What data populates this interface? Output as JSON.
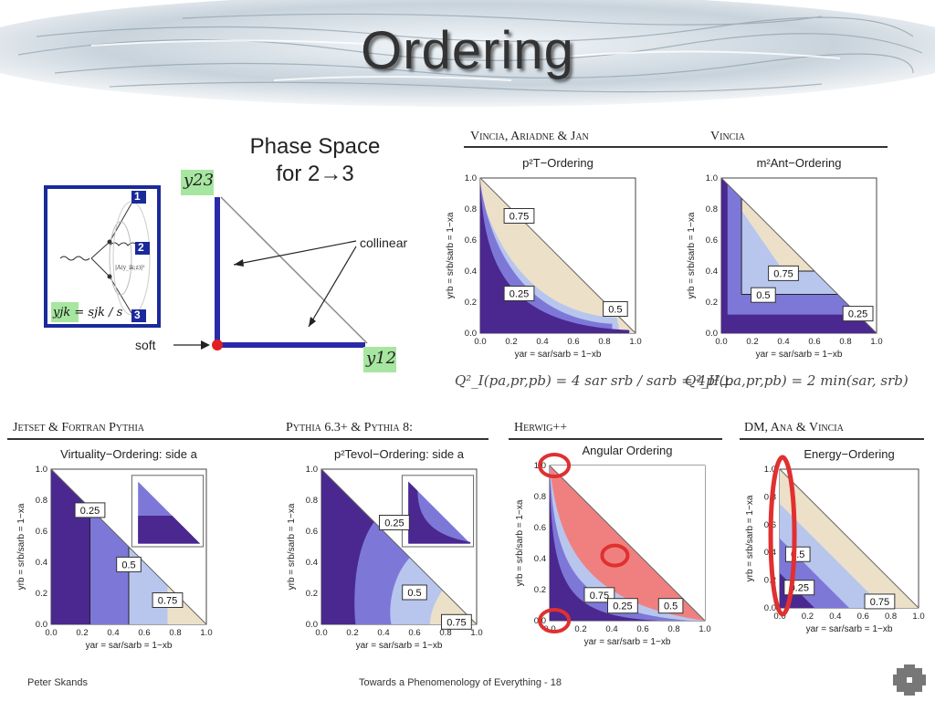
{
  "slide": {
    "title": "Ordering",
    "footer_left": "Peter Skands",
    "footer_center": "Towards a Phenomenology of Everything - 18"
  },
  "phase_space": {
    "title_line1": "Phase Space",
    "title_line2": "for 2→3",
    "y23": "y23",
    "y12": "y12",
    "collinear": "collinear",
    "soft": "soft",
    "inset_formula": "yjk = sjk / s",
    "inset_numbers": [
      "1",
      "2",
      "3"
    ]
  },
  "headers": {
    "vincia_ariadne_jan": "Vincia, Ariadne & Jan",
    "vincia": "Vincia",
    "jetset": "Jetset & Fortran Pythia",
    "pythia": "Pythia 6.3+ & Pythia 8:",
    "herwig": "Herwig++",
    "dm_ana": "DM, Ana & Vincia"
  },
  "formulas": {
    "f1": "Q²_I(pa,pr,pb) = 4 sar srb / sarb = 4p²⊥",
    "f2": "Q²_II(pa,pr,pb) = 2 min(sar, srb)"
  },
  "chart_data": [
    {
      "id": "pt",
      "type": "heatmap",
      "title": "p²T−Ordering",
      "xlabel": "yar = sar/sarb = 1−xb",
      "ylabel": "yrb = srb/sarb = 1−xa",
      "xlim": [
        0,
        1
      ],
      "ylim": [
        0,
        1
      ],
      "ticks": [
        "0.0",
        "0.2",
        "0.4",
        "0.6",
        "0.8",
        "1.0"
      ],
      "contours": [
        "0.75",
        "0.25",
        "0.5"
      ]
    },
    {
      "id": "mant",
      "type": "heatmap",
      "title": "m²Ant−Ordering",
      "xlabel": "yar = sar/sarb = 1−xb",
      "ylabel": "yrb = srb/sarb = 1−xa",
      "xlim": [
        0,
        1
      ],
      "ylim": [
        0,
        1
      ],
      "ticks": [
        "0.0",
        "0.2",
        "0.4",
        "0.6",
        "0.8",
        "1.0"
      ],
      "contours": [
        "0.75",
        "0.5",
        "0.25"
      ]
    },
    {
      "id": "virt",
      "type": "heatmap",
      "title": "Virtuality−Ordering: side a",
      "xlabel": "yar = sar/sarb = 1−xb",
      "ylabel": "yrb = srb/sarb = 1−xa",
      "xlim": [
        0,
        1
      ],
      "ylim": [
        0,
        1
      ],
      "ticks": [
        "0.0",
        "0.2",
        "0.4",
        "0.6",
        "0.8",
        "1.0"
      ],
      "contours": [
        "0.25",
        "0.5",
        "0.75"
      ]
    },
    {
      "id": "pevol",
      "type": "heatmap",
      "title": "p²Tevol−Ordering: side a",
      "xlabel": "yar = sar/sarb = 1−xb",
      "ylabel": "yrb = srb/sarb = 1−xa",
      "xlim": [
        0,
        1
      ],
      "ylim": [
        0,
        1
      ],
      "ticks": [
        "0.0",
        "0.2",
        "0.4",
        "0.6",
        "0.8",
        "1.0"
      ],
      "contours": [
        "0.25",
        "0.5",
        "0.75"
      ]
    },
    {
      "id": "ang",
      "type": "heatmap",
      "title": "Angular Ordering",
      "xlabel": "yar = sar/sarb = 1−xb",
      "ylabel": "yrb = srb/sarb = 1−xa",
      "xlim": [
        0,
        1
      ],
      "ylim": [
        0,
        1
      ],
      "ticks": [
        "0.0",
        "0.2",
        "0.4",
        "0.6",
        "0.8",
        "1.0"
      ],
      "contours": [
        "0.75",
        "0.25",
        "0.5"
      ]
    },
    {
      "id": "energy",
      "type": "heatmap",
      "title": "Energy−Ordering",
      "xlabel": "yar = sar/sarb = 1−xb",
      "ylabel": "yrb = srb/sarb = 1−xa",
      "xlim": [
        0,
        1
      ],
      "ylim": [
        0,
        1
      ],
      "ticks": [
        "0.0",
        "0.2",
        "0.4",
        "0.6",
        "0.8",
        "1.0"
      ],
      "contours": [
        "0.5",
        "0.25",
        "0.75"
      ]
    }
  ],
  "colors": {
    "dark": "#4a2890",
    "mid": "#7d78d8",
    "light": "#b8c6ee",
    "beige": "#ece0c8",
    "red": "#e03030",
    "grey": "#6a6a6a",
    "pink": "#f08080",
    "frame_blue": "#1a2a9a"
  }
}
